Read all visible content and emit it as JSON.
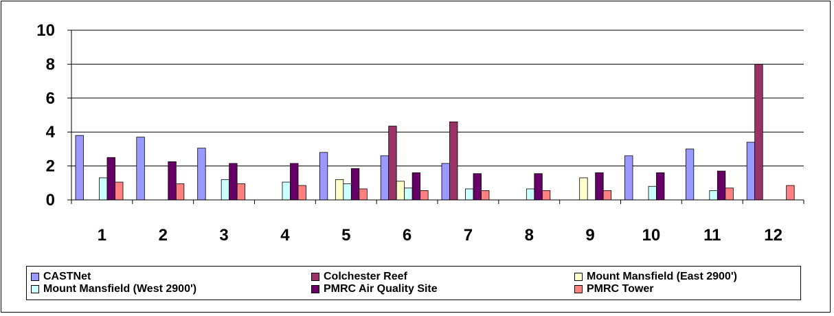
{
  "chart_data": {
    "type": "bar",
    "categories": [
      "1",
      "2",
      "3",
      "4",
      "5",
      "6",
      "7",
      "8",
      "9",
      "10",
      "11",
      "12"
    ],
    "ylim": [
      0,
      10
    ],
    "yticks": [
      0,
      2,
      4,
      6,
      8,
      10
    ],
    "grid": true,
    "legend_placement": "bottom",
    "series": [
      {
        "name": "CASTNet",
        "color": "#9999ff",
        "values": [
          3.8,
          3.7,
          3.05,
          null,
          2.8,
          2.6,
          2.15,
          null,
          null,
          2.6,
          3.0,
          3.4
        ]
      },
      {
        "name": "Colchester Reef",
        "color": "#993366",
        "values": [
          null,
          null,
          null,
          null,
          null,
          4.35,
          4.6,
          null,
          null,
          null,
          null,
          8.0
        ]
      },
      {
        "name": "Mount Mansfield (East 2900')",
        "color": "#ffffcc",
        "values": [
          null,
          null,
          null,
          null,
          1.2,
          1.1,
          null,
          null,
          1.3,
          null,
          null,
          null
        ]
      },
      {
        "name": "Mount Mansfield (West 2900')",
        "color": "#ccffff",
        "values": [
          1.3,
          null,
          1.2,
          1.05,
          0.95,
          0.7,
          0.65,
          0.65,
          null,
          0.8,
          0.55,
          null
        ]
      },
      {
        "name": "PMRC Air Quality Site",
        "color": "#660066",
        "values": [
          2.5,
          2.25,
          2.15,
          2.15,
          1.85,
          1.6,
          1.55,
          1.55,
          1.6,
          1.6,
          1.7,
          null
        ]
      },
      {
        "name": "PMRC Tower",
        "color": "#ff8080",
        "values": [
          1.05,
          0.95,
          0.95,
          0.85,
          0.65,
          0.55,
          0.55,
          0.55,
          0.55,
          null,
          0.7,
          0.85
        ]
      }
    ]
  }
}
